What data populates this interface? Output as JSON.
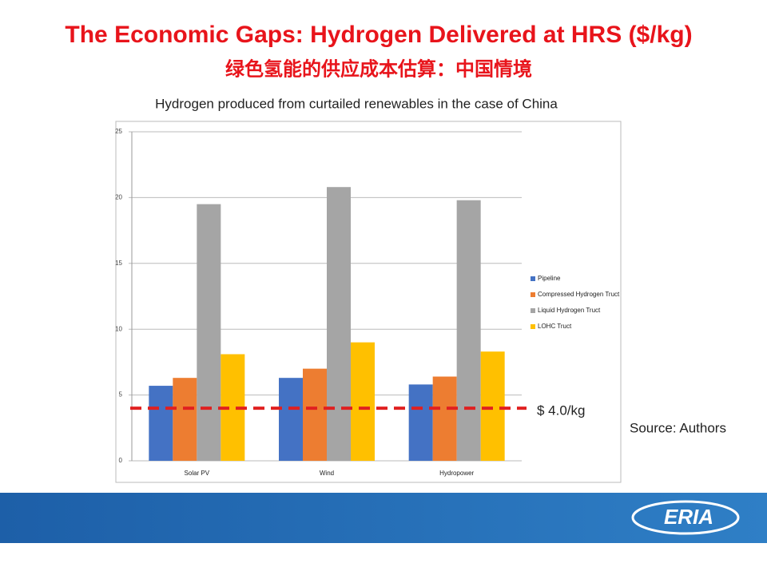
{
  "header": {
    "title": "The Economic Gaps: Hydrogen Delivered at HRS ($/kg)",
    "subtitle": "绿色氢能的供应成本估算：中国情境"
  },
  "chart_data": {
    "type": "bar",
    "title": "Hydrogen produced from curtailed renewables in the case of China",
    "categories": [
      "Solar PV",
      "Wind",
      "Hydropower"
    ],
    "series": [
      {
        "name": "Pipeline",
        "color": "#4472c4",
        "values": [
          5.7,
          6.3,
          5.8
        ]
      },
      {
        "name": "Compressed Hydrogen Truct",
        "color": "#ed7d31",
        "values": [
          6.3,
          7.0,
          6.4
        ]
      },
      {
        "name": "Liquid Hydrogen Truct",
        "color": "#a5a5a5",
        "values": [
          19.5,
          20.8,
          19.8
        ]
      },
      {
        "name": "LOHC Truct",
        "color": "#ffc000",
        "values": [
          8.1,
          9.0,
          8.3
        ]
      }
    ],
    "ylim": [
      0,
      25
    ],
    "yticks": [
      0,
      5,
      10,
      15,
      20,
      25
    ],
    "grid": true,
    "legend": "right",
    "reference_line": {
      "value": 4,
      "label": "$ 4.0/kg",
      "color": "#e02020"
    }
  },
  "source": "Source: Authors",
  "footer": {
    "logo": "ERIA"
  }
}
